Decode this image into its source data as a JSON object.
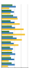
{
  "chart_data": {
    "type": "bar",
    "orientation": "horizontal",
    "grid": true,
    "tick_labels": false,
    "categories": [
      null,
      null,
      null,
      null,
      null,
      null,
      null,
      null,
      null,
      null,
      null,
      null
    ],
    "series": [
      {
        "color": "#3a7d44",
        "values": [
          42,
          38,
          45,
          35,
          40,
          30,
          44,
          36,
          33,
          41,
          37,
          39
        ]
      },
      {
        "color": "#2e75b6",
        "values": [
          55,
          48,
          60,
          50,
          52,
          45,
          58,
          47,
          44,
          53,
          49,
          51
        ]
      },
      {
        "color": "#f2c12e",
        "values": [
          30,
          35,
          62,
          70,
          85,
          90,
          78,
          65,
          40,
          33,
          28,
          25
        ]
      }
    ],
    "xlim": [
      0,
      100
    ],
    "xticks": [
      0,
      25,
      50,
      75,
      100
    ]
  }
}
